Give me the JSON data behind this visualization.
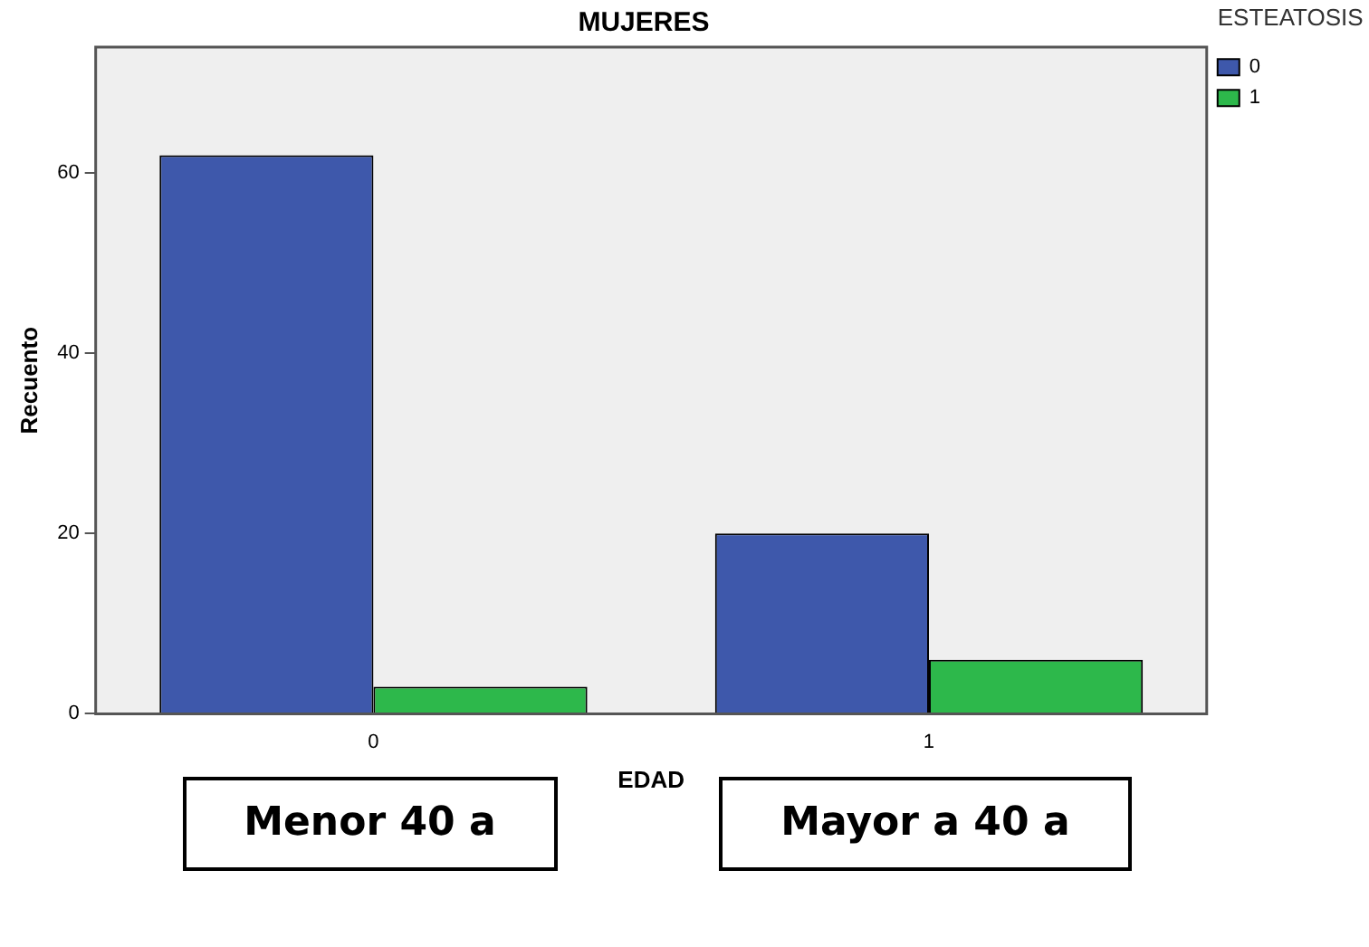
{
  "chart_data": {
    "type": "bar",
    "title": "MUJERES",
    "xlabel": "EDAD",
    "ylabel": "Recuento",
    "legend_title": "ESTEATOSIS",
    "categories": [
      "0",
      "1"
    ],
    "series": [
      {
        "name": "0",
        "color": "#3e58ab",
        "values": [
          62,
          20
        ]
      },
      {
        "name": "1",
        "color": "#2db84b",
        "values": [
          3,
          6
        ]
      }
    ],
    "ylim": [
      0,
      74
    ],
    "yticks": [
      0,
      20,
      40,
      60
    ],
    "grid": false,
    "legend": "top right",
    "annotations": [
      "Menor 40 a",
      "Mayor a 40 a"
    ]
  }
}
